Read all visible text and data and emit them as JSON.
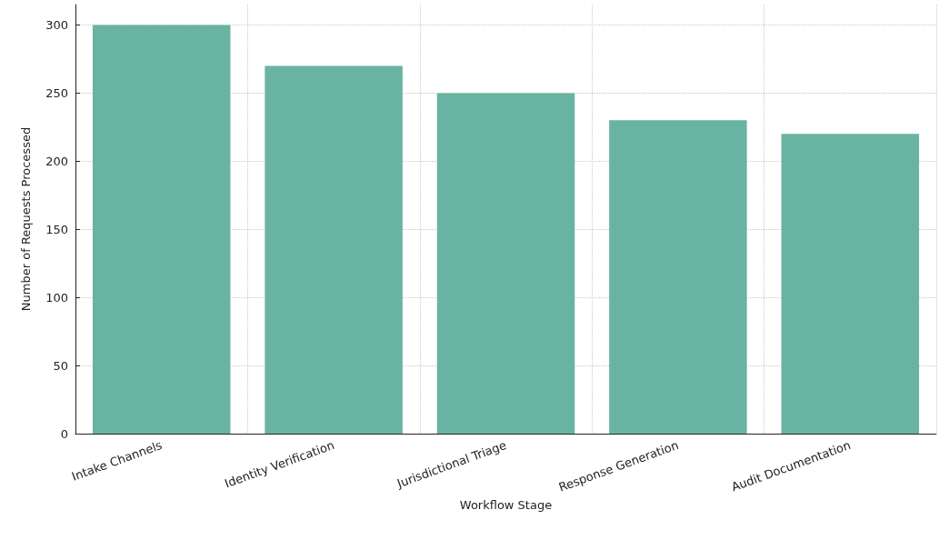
{
  "chart_data": {
    "type": "bar",
    "xlabel": "Workflow Stage",
    "ylabel": "Number of Requests Processed",
    "categories": [
      "Intake Channels",
      "Identity Verification",
      "Jurisdictional Triage",
      "Response Generation",
      "Audit Documentation"
    ],
    "values": [
      300,
      270,
      250,
      230,
      220
    ],
    "color": "#69b3a2",
    "ylim": [
      0,
      315
    ],
    "yticks": [
      0,
      50,
      100,
      150,
      200,
      250,
      300
    ],
    "grid": true
  }
}
